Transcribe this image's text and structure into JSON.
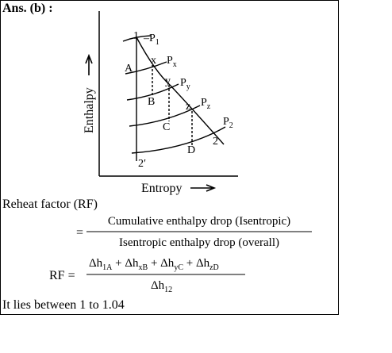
{
  "header": {
    "title": "Ans. (b) :"
  },
  "diagram": {
    "y_axis_label": "Enthalpy",
    "x_axis_label": "Entropy",
    "points": [
      "1",
      "A",
      "x",
      "y",
      "B",
      "z",
      "C",
      "D",
      "2",
      "2′"
    ],
    "pressure_labels": [
      {
        "base": "P",
        "sub": "1"
      },
      {
        "base": "P",
        "sub": "x"
      },
      {
        "base": "P",
        "sub": "y"
      },
      {
        "base": "P",
        "sub": "z"
      },
      {
        "base": "P",
        "sub": "2"
      }
    ]
  },
  "definition": {
    "label": "Reheat factor (RF)",
    "equals": "=",
    "numerator": "Cumulative enthalpy drop (Isentropic)",
    "denominator": "Isentropic enthalpy drop (overall)"
  },
  "formula": {
    "lhs": "RF =",
    "operator": "+",
    "numerator_terms": [
      {
        "base": "Δh",
        "sub": "1A"
      },
      {
        "base": "Δh",
        "sub": "xB"
      },
      {
        "base": "Δh",
        "sub": "yC"
      },
      {
        "base": "Δh",
        "sub": "zD"
      }
    ],
    "denominator": {
      "base": "Δh",
      "sub": "12"
    }
  },
  "note": "It lies between 1 to 1.04"
}
